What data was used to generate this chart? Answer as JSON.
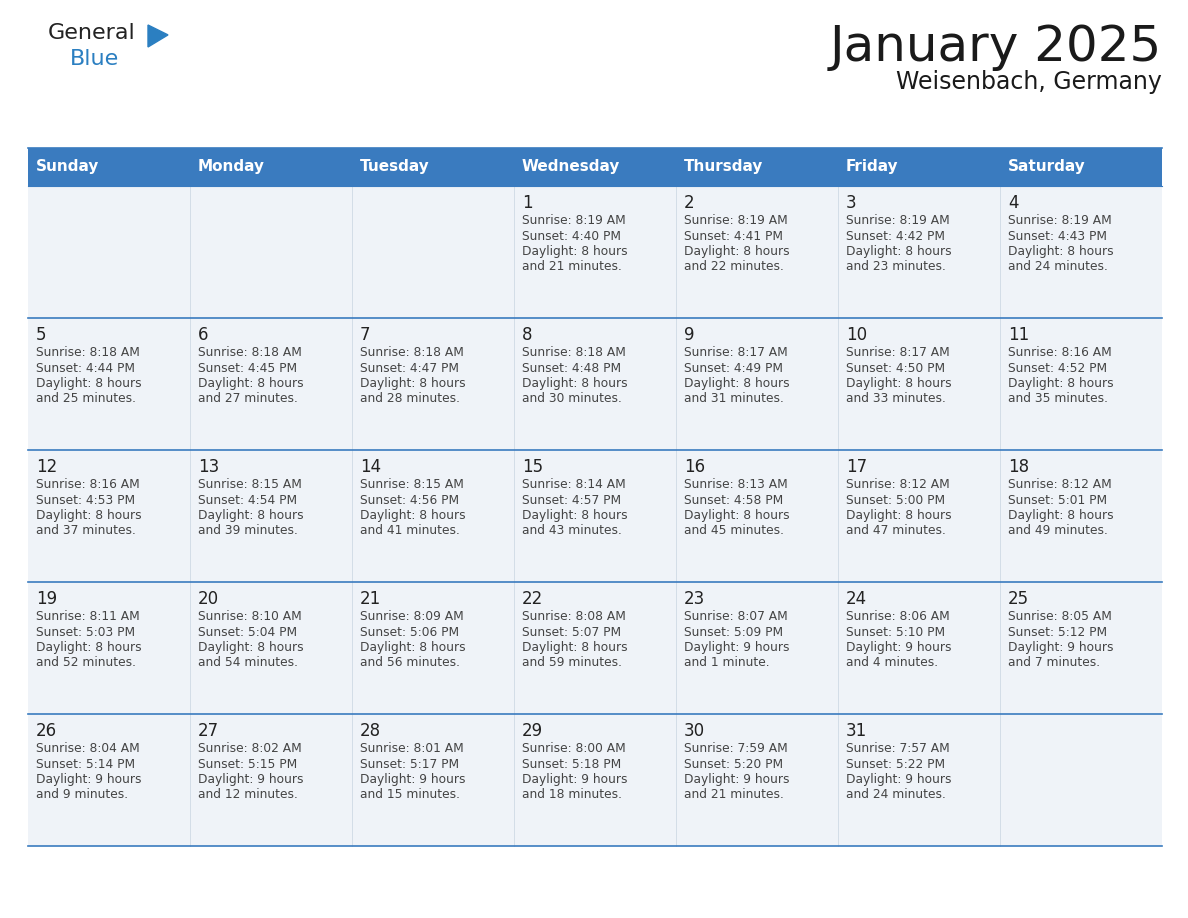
{
  "title": "January 2025",
  "subtitle": "Weisenbach, Germany",
  "header_color": "#3a7bbf",
  "header_text_color": "#ffffff",
  "day_names": [
    "Sunday",
    "Monday",
    "Tuesday",
    "Wednesday",
    "Thursday",
    "Friday",
    "Saturday"
  ],
  "cell_bg_color": "#eff3f8",
  "divider_color": "#3a7bbf",
  "text_color": "#444444",
  "num_color": "#222222",
  "logo_general_color": "#222222",
  "logo_blue_color": "#2b7fc1",
  "days": [
    {
      "day": 1,
      "col": 3,
      "row": 0,
      "sunrise": "8:19 AM",
      "sunset": "4:40 PM",
      "daylight": "8 hours and 21 minutes."
    },
    {
      "day": 2,
      "col": 4,
      "row": 0,
      "sunrise": "8:19 AM",
      "sunset": "4:41 PM",
      "daylight": "8 hours and 22 minutes."
    },
    {
      "day": 3,
      "col": 5,
      "row": 0,
      "sunrise": "8:19 AM",
      "sunset": "4:42 PM",
      "daylight": "8 hours and 23 minutes."
    },
    {
      "day": 4,
      "col": 6,
      "row": 0,
      "sunrise": "8:19 AM",
      "sunset": "4:43 PM",
      "daylight": "8 hours and 24 minutes."
    },
    {
      "day": 5,
      "col": 0,
      "row": 1,
      "sunrise": "8:18 AM",
      "sunset": "4:44 PM",
      "daylight": "8 hours and 25 minutes."
    },
    {
      "day": 6,
      "col": 1,
      "row": 1,
      "sunrise": "8:18 AM",
      "sunset": "4:45 PM",
      "daylight": "8 hours and 27 minutes."
    },
    {
      "day": 7,
      "col": 2,
      "row": 1,
      "sunrise": "8:18 AM",
      "sunset": "4:47 PM",
      "daylight": "8 hours and 28 minutes."
    },
    {
      "day": 8,
      "col": 3,
      "row": 1,
      "sunrise": "8:18 AM",
      "sunset": "4:48 PM",
      "daylight": "8 hours and 30 minutes."
    },
    {
      "day": 9,
      "col": 4,
      "row": 1,
      "sunrise": "8:17 AM",
      "sunset": "4:49 PM",
      "daylight": "8 hours and 31 minutes."
    },
    {
      "day": 10,
      "col": 5,
      "row": 1,
      "sunrise": "8:17 AM",
      "sunset": "4:50 PM",
      "daylight": "8 hours and 33 minutes."
    },
    {
      "day": 11,
      "col": 6,
      "row": 1,
      "sunrise": "8:16 AM",
      "sunset": "4:52 PM",
      "daylight": "8 hours and 35 minutes."
    },
    {
      "day": 12,
      "col": 0,
      "row": 2,
      "sunrise": "8:16 AM",
      "sunset": "4:53 PM",
      "daylight": "8 hours and 37 minutes."
    },
    {
      "day": 13,
      "col": 1,
      "row": 2,
      "sunrise": "8:15 AM",
      "sunset": "4:54 PM",
      "daylight": "8 hours and 39 minutes."
    },
    {
      "day": 14,
      "col": 2,
      "row": 2,
      "sunrise": "8:15 AM",
      "sunset": "4:56 PM",
      "daylight": "8 hours and 41 minutes."
    },
    {
      "day": 15,
      "col": 3,
      "row": 2,
      "sunrise": "8:14 AM",
      "sunset": "4:57 PM",
      "daylight": "8 hours and 43 minutes."
    },
    {
      "day": 16,
      "col": 4,
      "row": 2,
      "sunrise": "8:13 AM",
      "sunset": "4:58 PM",
      "daylight": "8 hours and 45 minutes."
    },
    {
      "day": 17,
      "col": 5,
      "row": 2,
      "sunrise": "8:12 AM",
      "sunset": "5:00 PM",
      "daylight": "8 hours and 47 minutes."
    },
    {
      "day": 18,
      "col": 6,
      "row": 2,
      "sunrise": "8:12 AM",
      "sunset": "5:01 PM",
      "daylight": "8 hours and 49 minutes."
    },
    {
      "day": 19,
      "col": 0,
      "row": 3,
      "sunrise": "8:11 AM",
      "sunset": "5:03 PM",
      "daylight": "8 hours and 52 minutes."
    },
    {
      "day": 20,
      "col": 1,
      "row": 3,
      "sunrise": "8:10 AM",
      "sunset": "5:04 PM",
      "daylight": "8 hours and 54 minutes."
    },
    {
      "day": 21,
      "col": 2,
      "row": 3,
      "sunrise": "8:09 AM",
      "sunset": "5:06 PM",
      "daylight": "8 hours and 56 minutes."
    },
    {
      "day": 22,
      "col": 3,
      "row": 3,
      "sunrise": "8:08 AM",
      "sunset": "5:07 PM",
      "daylight": "8 hours and 59 minutes."
    },
    {
      "day": 23,
      "col": 4,
      "row": 3,
      "sunrise": "8:07 AM",
      "sunset": "5:09 PM",
      "daylight": "9 hours and 1 minute."
    },
    {
      "day": 24,
      "col": 5,
      "row": 3,
      "sunrise": "8:06 AM",
      "sunset": "5:10 PM",
      "daylight": "9 hours and 4 minutes."
    },
    {
      "day": 25,
      "col": 6,
      "row": 3,
      "sunrise": "8:05 AM",
      "sunset": "5:12 PM",
      "daylight": "9 hours and 7 minutes."
    },
    {
      "day": 26,
      "col": 0,
      "row": 4,
      "sunrise": "8:04 AM",
      "sunset": "5:14 PM",
      "daylight": "9 hours and 9 minutes."
    },
    {
      "day": 27,
      "col": 1,
      "row": 4,
      "sunrise": "8:02 AM",
      "sunset": "5:15 PM",
      "daylight": "9 hours and 12 minutes."
    },
    {
      "day": 28,
      "col": 2,
      "row": 4,
      "sunrise": "8:01 AM",
      "sunset": "5:17 PM",
      "daylight": "9 hours and 15 minutes."
    },
    {
      "day": 29,
      "col": 3,
      "row": 4,
      "sunrise": "8:00 AM",
      "sunset": "5:18 PM",
      "daylight": "9 hours and 18 minutes."
    },
    {
      "day": 30,
      "col": 4,
      "row": 4,
      "sunrise": "7:59 AM",
      "sunset": "5:20 PM",
      "daylight": "9 hours and 21 minutes."
    },
    {
      "day": 31,
      "col": 5,
      "row": 4,
      "sunrise": "7:57 AM",
      "sunset": "5:22 PM",
      "daylight": "9 hours and 24 minutes."
    }
  ]
}
